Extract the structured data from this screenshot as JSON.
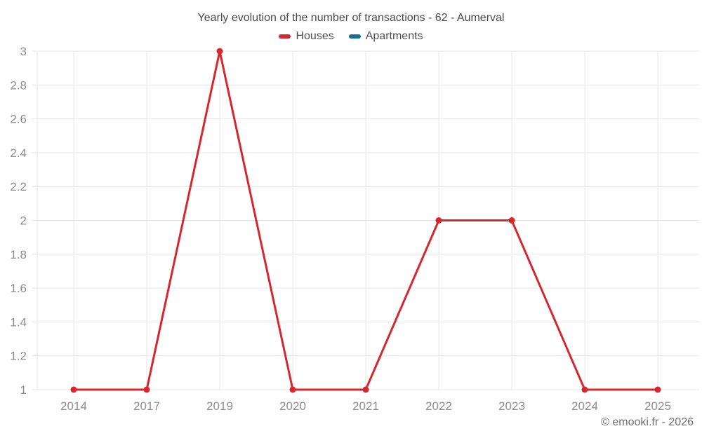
{
  "footer": "© emooki.fr - 2026",
  "colors": {
    "background": "#ffffff",
    "grid": "#e6e6e6",
    "axis_label": "#8e8e8e",
    "title": "#4a4a4a",
    "footer": "#6e6e6e",
    "houses": "#d7272e",
    "apartments": "#16709e"
  },
  "chart_data": {
    "type": "line",
    "title": "Yearly evolution of the number of transactions - 62 - Aumerval",
    "categories": [
      "2014",
      "2017",
      "2019",
      "2020",
      "2021",
      "2022",
      "2023",
      "2024",
      "2025"
    ],
    "series": [
      {
        "name": "Houses",
        "color": "#d7272e",
        "values": [
          1,
          1,
          3,
          1,
          1,
          2,
          2,
          1,
          1
        ]
      },
      {
        "name": "Apartments",
        "color": "#16709e",
        "values": []
      }
    ],
    "xlabel": "",
    "ylabel": "",
    "ylim": [
      1,
      3
    ],
    "ytick_step": 0.2,
    "ytick_labels": [
      "1",
      "1.2",
      "1.4",
      "1.6",
      "1.8",
      "2",
      "2.2",
      "2.4",
      "2.6",
      "2.8",
      "3"
    ],
    "grid": true,
    "legend_position": "top"
  }
}
